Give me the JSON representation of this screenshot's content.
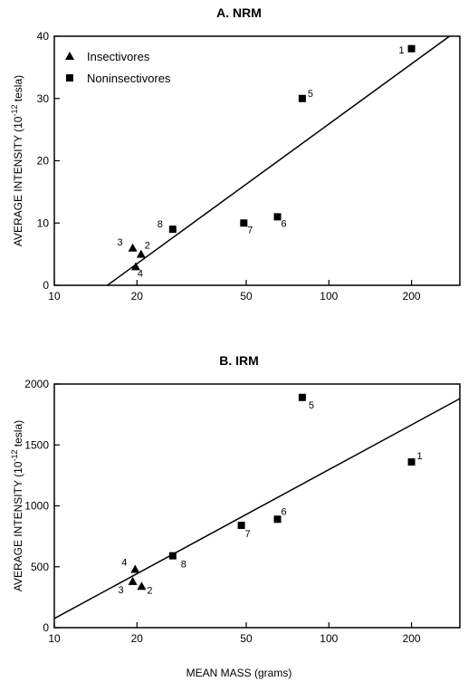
{
  "chart_data": [
    {
      "type": "scatter",
      "title": "A. NRM",
      "xlabel": "",
      "ylabel": "AVERAGE INTENSITY (10-12 tesla)",
      "ylabel_main": "AVERAGE INTENSITY (10",
      "ylabel_sup": "-12",
      "ylabel_end": " tesla)",
      "x_scale": "log",
      "xlim": [
        10,
        300
      ],
      "ylim": [
        0,
        40
      ],
      "x_ticks": [
        "10",
        "20",
        "50",
        "100",
        "200"
      ],
      "y_ticks": [
        "0",
        "10",
        "20",
        "30",
        "40"
      ],
      "legend": [
        {
          "label": "Insectivores",
          "marker": "triangle"
        },
        {
          "label": "Noninsectivores",
          "marker": "square"
        }
      ],
      "legend_position": "top-left",
      "series": [
        {
          "name": "Insectivores",
          "marker": "triangle",
          "points": [
            {
              "label": "3",
              "x": 19.3,
              "y": 6
            },
            {
              "label": "2",
              "x": 20.7,
              "y": 5
            },
            {
              "label": "4",
              "x": 19.8,
              "y": 3
            }
          ]
        },
        {
          "name": "Noninsectivores",
          "marker": "square",
          "points": [
            {
              "label": "1",
              "x": 200,
              "y": 38
            },
            {
              "label": "5",
              "x": 80,
              "y": 30
            },
            {
              "label": "8",
              "x": 27,
              "y": 9
            },
            {
              "label": "7",
              "x": 49,
              "y": 10
            },
            {
              "label": "6",
              "x": 65,
              "y": 11
            }
          ]
        }
      ],
      "fit_line": [
        {
          "x": 15.6,
          "y": 0
        },
        {
          "x": 275,
          "y": 40
        }
      ]
    },
    {
      "type": "scatter",
      "title": "B. IRM",
      "xlabel": "MEAN MASS (grams)",
      "ylabel": "AVERAGE INTENSITY (10-12 tesla)",
      "ylabel_main": "AVERAGE INTENSITY (10",
      "ylabel_sup": "-12",
      "ylabel_end": " tesla)",
      "x_scale": "log",
      "xlim": [
        10,
        300
      ],
      "ylim": [
        0,
        2000
      ],
      "x_ticks": [
        "10",
        "20",
        "50",
        "100",
        "200"
      ],
      "y_ticks": [
        "0",
        "500",
        "1000",
        "1500",
        "2000"
      ],
      "series": [
        {
          "name": "Insectivores",
          "marker": "triangle",
          "points": [
            {
              "label": "4",
              "x": 19.7,
              "y": 480
            },
            {
              "label": "3",
              "x": 19.3,
              "y": 380
            },
            {
              "label": "2",
              "x": 20.8,
              "y": 340
            }
          ]
        },
        {
          "name": "Noninsectivores",
          "marker": "square",
          "points": [
            {
              "label": "5",
              "x": 80,
              "y": 1890
            },
            {
              "label": "1",
              "x": 200,
              "y": 1360
            },
            {
              "label": "6",
              "x": 65,
              "y": 890
            },
            {
              "label": "7",
              "x": 48,
              "y": 840
            },
            {
              "label": "8",
              "x": 27,
              "y": 590
            }
          ]
        }
      ],
      "fit_line": [
        {
          "x": 10,
          "y": 75
        },
        {
          "x": 300,
          "y": 1880
        }
      ]
    }
  ]
}
